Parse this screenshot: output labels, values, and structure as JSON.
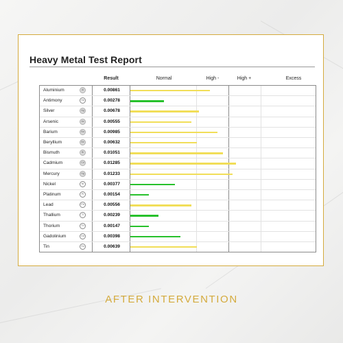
{
  "report": {
    "title": "Heavy Metal Test Report",
    "headers": {
      "result": "Result",
      "normal": "Normal",
      "high_minus": "High -",
      "high_plus": "High +",
      "excess": "Excess"
    }
  },
  "colors": {
    "normal": "#27c12b",
    "elevated": "#f1de58",
    "accent": "#d4aa3c"
  },
  "rows": [
    {
      "name": "Aluminium",
      "symbol": "Al",
      "result": "0.00861",
      "level": 0.43,
      "status": "elevated"
    },
    {
      "name": "Antimony",
      "symbol": "Sb",
      "result": "0.00278",
      "level": 0.18,
      "status": "normal"
    },
    {
      "name": "Silver",
      "symbol": "Ag",
      "result": "0.00678",
      "level": 0.37,
      "status": "elevated"
    },
    {
      "name": "Arsenic",
      "symbol": "As",
      "result": "0.00555",
      "level": 0.33,
      "status": "elevated"
    },
    {
      "name": "Barium",
      "symbol": "Ba",
      "result": "0.00985",
      "level": 0.47,
      "status": "elevated"
    },
    {
      "name": "Beryllium",
      "symbol": "Be",
      "result": "0.00632",
      "level": 0.36,
      "status": "elevated"
    },
    {
      "name": "Bismuth",
      "symbol": "Bi",
      "result": "0.01051",
      "level": 0.5,
      "status": "elevated"
    },
    {
      "name": "Cadmium",
      "symbol": "Cd",
      "result": "0.01285",
      "level": 0.57,
      "status": "elevated"
    },
    {
      "name": "Mercury",
      "symbol": "Hg",
      "result": "0.01233",
      "level": 0.55,
      "status": "elevated"
    },
    {
      "name": "Nickel",
      "symbol": "Ni",
      "result": "0.00377",
      "level": 0.24,
      "status": "normal"
    },
    {
      "name": "Platinum",
      "symbol": "Pt",
      "result": "0.00154",
      "level": 0.1,
      "status": "normal"
    },
    {
      "name": "Lead",
      "symbol": "Pb",
      "result": "0.00556",
      "level": 0.33,
      "status": "elevated"
    },
    {
      "name": "Thallium",
      "symbol": "Tl",
      "result": "0.00239",
      "level": 0.15,
      "status": "normal"
    },
    {
      "name": "Thorium",
      "symbol": "Th",
      "result": "0.00147",
      "level": 0.1,
      "status": "normal"
    },
    {
      "name": "Gadolinium",
      "symbol": "Gd",
      "result": "0.00398",
      "level": 0.27,
      "status": "normal"
    },
    {
      "name": "Tin",
      "symbol": "Sn",
      "result": "0.00639",
      "level": 0.36,
      "status": "elevated"
    }
  ],
  "caption": "AFTER INTERVENTION"
}
